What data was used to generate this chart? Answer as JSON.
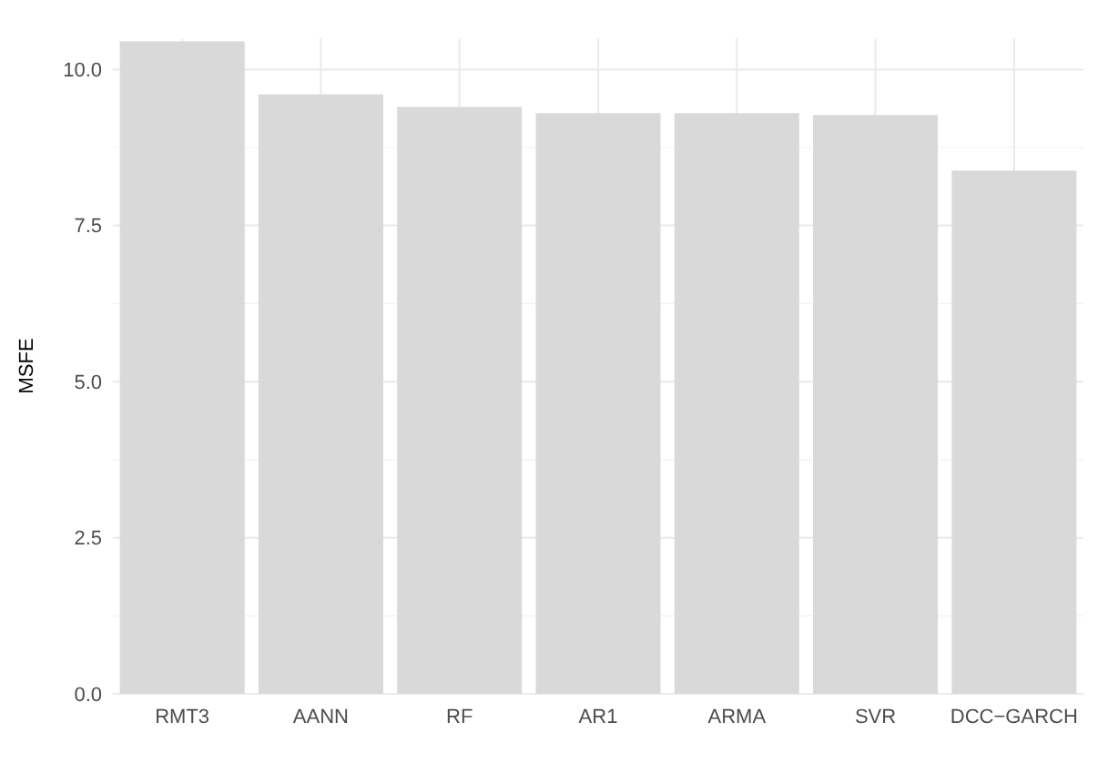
{
  "chart_data": {
    "type": "bar",
    "ylabel": "MSFE",
    "categories": [
      "RMT3",
      "AANN",
      "RF",
      "AR1",
      "ARMA",
      "SVR",
      "DCC−GARCH"
    ],
    "values": [
      10.45,
      9.6,
      9.4,
      9.3,
      9.3,
      9.27,
      8.38
    ],
    "color": "#d9d9d9",
    "ylim": [
      0,
      10.5
    ],
    "yticks": [
      {
        "value": 0,
        "label": "0.0"
      },
      {
        "value": 2.5,
        "label": "2.5"
      },
      {
        "value": 5,
        "label": "5.0"
      },
      {
        "value": 7.5,
        "label": "7.5"
      },
      {
        "value": 10,
        "label": "10.0"
      }
    ],
    "grid": true
  }
}
